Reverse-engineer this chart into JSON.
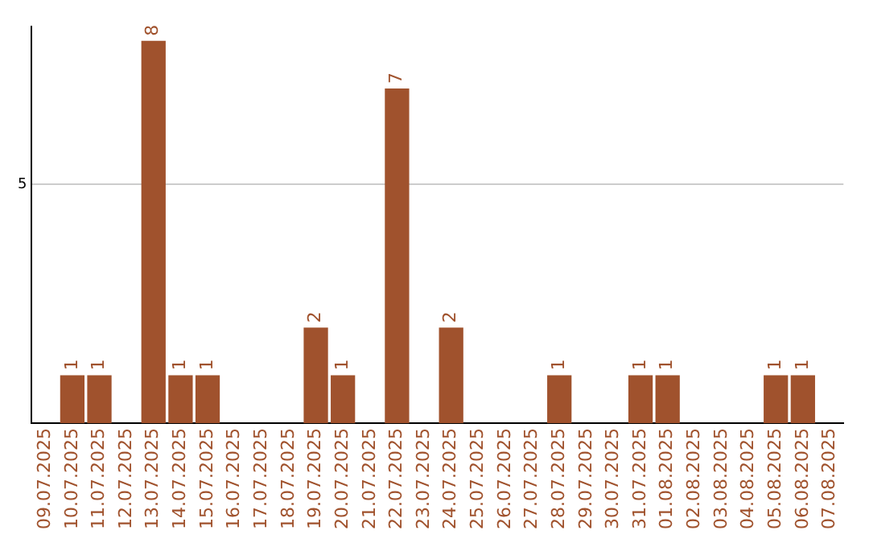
{
  "chart_data": {
    "type": "bar",
    "categories": [
      "09.07.2025",
      "10.07.2025",
      "11.07.2025",
      "12.07.2025",
      "13.07.2025",
      "14.07.2025",
      "15.07.2025",
      "16.07.2025",
      "17.07.2025",
      "18.07.2025",
      "19.07.2025",
      "20.07.2025",
      "21.07.2025",
      "22.07.2025",
      "23.07.2025",
      "24.07.2025",
      "25.07.2025",
      "26.07.2025",
      "27.07.2025",
      "28.07.2025",
      "29.07.2025",
      "30.07.2025",
      "31.07.2025",
      "01.08.2025",
      "02.08.2025",
      "03.08.2025",
      "04.08.2025",
      "05.08.2025",
      "06.08.2025",
      "07.08.2025"
    ],
    "values": [
      0,
      1,
      1,
      0,
      8,
      1,
      1,
      0,
      0,
      0,
      2,
      1,
      0,
      7,
      0,
      2,
      0,
      0,
      0,
      1,
      0,
      0,
      1,
      1,
      0,
      0,
      0,
      1,
      1,
      0
    ],
    "value_labels": [
      null,
      "1",
      "1",
      null,
      "8",
      "1",
      "1",
      null,
      null,
      null,
      "2",
      "1",
      null,
      "7",
      null,
      "2",
      null,
      null,
      null,
      "1",
      null,
      null,
      "1",
      "1",
      null,
      null,
      null,
      "1",
      "1",
      null
    ],
    "color": "#a0522d",
    "ylim": [
      0,
      8.3
    ],
    "yticks": [
      5
    ],
    "grid": "y",
    "legend": false
  }
}
